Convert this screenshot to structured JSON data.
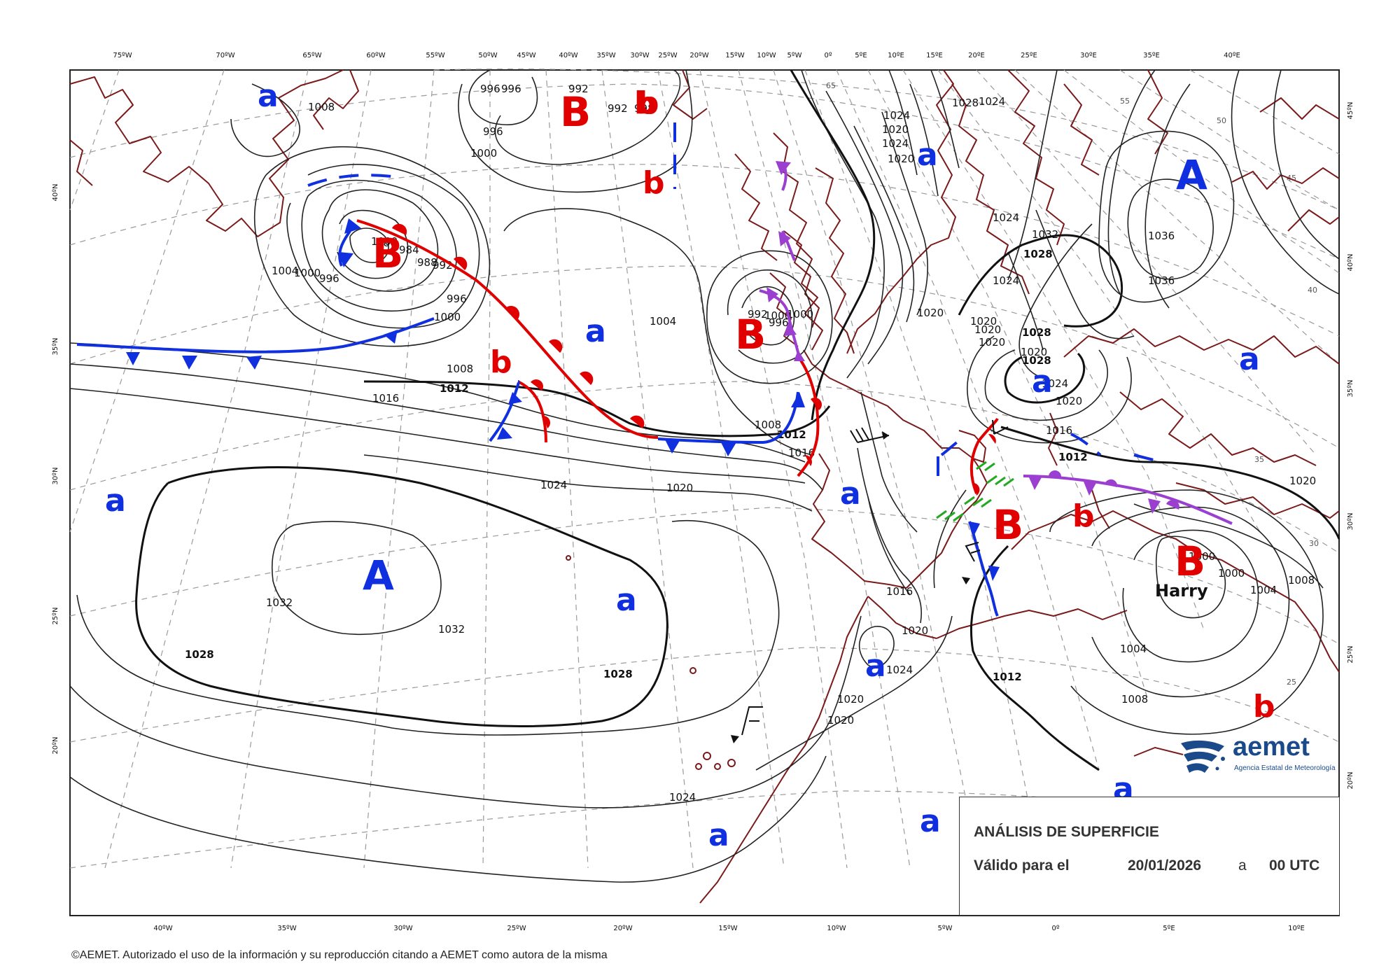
{
  "title": "ANÁLISIS DE SUPERFICIE",
  "valid": {
    "label": "Válido para el",
    "date": "20/01/2026",
    "connector": "a",
    "time": "00 UTC"
  },
  "credits": "©AEMET. Autorizado el uso de la información y su reproducción citando a AEMET como autora de la misma",
  "logo": {
    "name": "aemet",
    "subtitle": "Agencia Estatal de Meteorología"
  },
  "colors": {
    "high": "#1030e0",
    "low": "#e00000",
    "warm_front": "#e00000",
    "cold_front": "#1030e0",
    "occluded_front": "#9b3fd0",
    "coastline": "#7a1a1a"
  },
  "top_longitudes": [
    "75ºW",
    "70ºW",
    "65ºW",
    "60ºW",
    "55ºW",
    "50ºW",
    "45ºW",
    "40ºW",
    "35ºW",
    "30ºW",
    "25ºW",
    "20ºW",
    "15ºW",
    "10ºW",
    "5ºW",
    "0º",
    "5ºE",
    "10ºE",
    "15ºE",
    "20ºE",
    "25ºE",
    "30ºE",
    "35ºE",
    "40ºE"
  ],
  "bottom_longitudes": [
    "40ºW",
    "35ºW",
    "30ºW",
    "25ºW",
    "20ºW",
    "15ºW",
    "10ºW",
    "5ºW",
    "0º",
    "5ºE",
    "10ºE"
  ],
  "left_latitudes": [
    "40ºN",
    "35ºN",
    "30ºN",
    "25ºN",
    "20ºN"
  ],
  "right_latitudes": [
    "45ºN",
    "40ºN",
    "35ºN",
    "30ºN",
    "25ºN",
    "20ºN"
  ],
  "pressure_centers": [
    {
      "id": "high-azores",
      "type": "A",
      "size": "big"
    },
    {
      "id": "high-russia",
      "type": "A",
      "size": "big"
    },
    {
      "id": "low-greenland",
      "type": "B",
      "size": "big"
    },
    {
      "id": "low-newfoundland",
      "type": "B",
      "size": "big"
    },
    {
      "id": "low-ireland",
      "type": "B",
      "size": "big"
    },
    {
      "id": "low-spain",
      "type": "B",
      "size": "big"
    },
    {
      "id": "low-harry",
      "type": "B",
      "size": "big",
      "name": "Harry"
    },
    {
      "id": "rel-low-1",
      "type": "b"
    },
    {
      "id": "rel-low-2",
      "type": "b"
    },
    {
      "id": "rel-low-3",
      "type": "b"
    },
    {
      "id": "rel-low-4",
      "type": "b"
    },
    {
      "id": "rel-low-5",
      "type": "b"
    },
    {
      "id": "rel-low-6",
      "type": "b"
    },
    {
      "id": "rel-high-1",
      "type": "a"
    },
    {
      "id": "rel-high-2",
      "type": "a"
    },
    {
      "id": "rel-high-3",
      "type": "a"
    },
    {
      "id": "rel-high-4",
      "type": "a"
    },
    {
      "id": "rel-high-5",
      "type": "a"
    },
    {
      "id": "rel-high-6",
      "type": "a"
    },
    {
      "id": "rel-high-7",
      "type": "a"
    },
    {
      "id": "rel-high-8",
      "type": "a"
    },
    {
      "id": "rel-high-9",
      "type": "a"
    },
    {
      "id": "rel-high-10",
      "type": "a"
    },
    {
      "id": "rel-high-11",
      "type": "a"
    },
    {
      "id": "rel-high-12",
      "type": "a"
    },
    {
      "id": "rel-high-13",
      "type": "a"
    },
    {
      "id": "rel-high-14",
      "type": "a"
    }
  ],
  "isobar_labels": [
    {
      "id": "p1",
      "v": "1008"
    },
    {
      "id": "p2",
      "v": "996"
    },
    {
      "id": "p3",
      "v": "992"
    },
    {
      "id": "p4",
      "v": "998"
    },
    {
      "id": "p5",
      "v": "996"
    },
    {
      "id": "p6",
      "v": "992"
    },
    {
      "id": "p7",
      "v": "996"
    },
    {
      "id": "p8",
      "v": "1000"
    },
    {
      "id": "p9",
      "v": "1000"
    },
    {
      "id": "p10",
      "v": "984"
    },
    {
      "id": "p11",
      "v": "988"
    },
    {
      "id": "p12",
      "v": "992"
    },
    {
      "id": "p13",
      "v": "996"
    },
    {
      "id": "p14",
      "v": "1000"
    },
    {
      "id": "p15",
      "v": "1004"
    },
    {
      "id": "p16",
      "v": "1000"
    },
    {
      "id": "p17",
      "v": "996"
    },
    {
      "id": "p18",
      "v": "980"
    },
    {
      "id": "p19",
      "v": "1008"
    },
    {
      "id": "p20",
      "v": "1016"
    },
    {
      "id": "p21",
      "v": "1012",
      "bold": true
    },
    {
      "id": "p22",
      "v": "1004"
    },
    {
      "id": "p23",
      "v": "992"
    },
    {
      "id": "p24",
      "v": "996"
    },
    {
      "id": "p25",
      "v": "1000"
    },
    {
      "id": "p26",
      "v": "1008"
    },
    {
      "id": "p27",
      "v": "1012",
      "bold": true
    },
    {
      "id": "p28",
      "v": "1016"
    },
    {
      "id": "p29",
      "v": "1024"
    },
    {
      "id": "p30",
      "v": "1020"
    },
    {
      "id": "p31",
      "v": "1032"
    },
    {
      "id": "p32",
      "v": "1032"
    },
    {
      "id": "p33",
      "v": "1028",
      "bold": true
    },
    {
      "id": "p34",
      "v": "1028",
      "bold": true
    },
    {
      "id": "p35",
      "v": "1024"
    },
    {
      "id": "p36",
      "v": "1020"
    },
    {
      "id": "p37",
      "v": "1020"
    },
    {
      "id": "p38",
      "v": "1020"
    },
    {
      "id": "p39",
      "v": "1016"
    },
    {
      "id": "p40",
      "v": "1024"
    },
    {
      "id": "p41",
      "v": "1020"
    },
    {
      "id": "p42",
      "v": "1020"
    },
    {
      "id": "p43",
      "v": "1020"
    },
    {
      "id": "p44",
      "v": "1024"
    },
    {
      "id": "p45",
      "v": "1024"
    },
    {
      "id": "p46",
      "v": "1032"
    },
    {
      "id": "p47",
      "v": "1036"
    },
    {
      "id": "p48",
      "v": "1036"
    },
    {
      "id": "p49",
      "v": "1028",
      "bold": true
    },
    {
      "id": "p50",
      "v": "1028",
      "bold": true
    },
    {
      "id": "p51",
      "v": "1028",
      "bold": true
    },
    {
      "id": "p52",
      "v": "1020"
    },
    {
      "id": "p53",
      "v": "1024"
    },
    {
      "id": "p54",
      "v": "1020"
    },
    {
      "id": "p55",
      "v": "1016"
    },
    {
      "id": "p56",
      "v": "1012",
      "bold": true
    },
    {
      "id": "p57",
      "v": "1020"
    },
    {
      "id": "p58",
      "v": "1000"
    },
    {
      "id": "p59",
      "v": "1000"
    },
    {
      "id": "p60",
      "v": "1004"
    },
    {
      "id": "p61",
      "v": "1008"
    },
    {
      "id": "p62",
      "v": "1004"
    },
    {
      "id": "p63",
      "v": "1008"
    },
    {
      "id": "p64",
      "v": "1012",
      "bold": true
    },
    {
      "id": "p65",
      "v": "1000"
    },
    {
      "id": "p66",
      "v": "1024"
    },
    {
      "id": "p67",
      "v": "1020"
    },
    {
      "id": "p68",
      "v": "1024"
    },
    {
      "id": "p69",
      "v": "1024"
    },
    {
      "id": "p70",
      "v": "1028"
    },
    {
      "id": "p71",
      "v": "1020"
    },
    {
      "id": "p72",
      "v": "1020"
    }
  ],
  "graticule_labels": [
    {
      "id": "g1",
      "v": "65"
    },
    {
      "id": "g2",
      "v": "55"
    },
    {
      "id": "g3",
      "v": "50"
    },
    {
      "id": "g4",
      "v": "45"
    },
    {
      "id": "g5",
      "v": "40"
    },
    {
      "id": "g6",
      "v": "35"
    },
    {
      "id": "g7",
      "v": "30"
    },
    {
      "id": "g8",
      "v": "25"
    }
  ]
}
